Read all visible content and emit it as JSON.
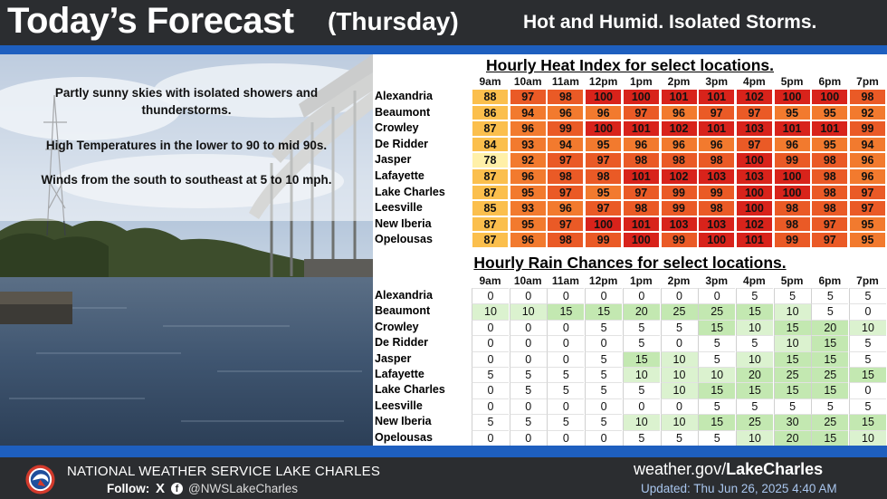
{
  "header": {
    "title": "Today’s Forecast",
    "day": "(Thursday)",
    "headline": "Hot and Humid. Isolated Storms."
  },
  "summary": {
    "line1": "Partly sunny skies with isolated showers and",
    "line2": "thunderstorms.",
    "line3": "High Temperatures in the lower to 90 to mid 90s.",
    "line4": "Winds from the south to southeast at 5 to 10 mph."
  },
  "hours": [
    "9am",
    "10am",
    "11am",
    "12pm",
    "1pm",
    "2pm",
    "3pm",
    "4pm",
    "5pm",
    "6pm",
    "7pm"
  ],
  "heat_index": {
    "title": "Hourly Heat Index for select locations.",
    "rows": [
      {
        "location": "Alexandria",
        "values": [
          88,
          97,
          98,
          100,
          100,
          101,
          101,
          102,
          100,
          100,
          98
        ]
      },
      {
        "location": "Beaumont",
        "values": [
          86,
          94,
          96,
          96,
          97,
          96,
          97,
          97,
          95,
          95,
          92
        ]
      },
      {
        "location": "Crowley",
        "values": [
          87,
          96,
          99,
          100,
          101,
          102,
          101,
          103,
          101,
          101,
          99
        ]
      },
      {
        "location": "De Ridder",
        "values": [
          84,
          93,
          94,
          95,
          96,
          96,
          96,
          97,
          96,
          95,
          94
        ]
      },
      {
        "location": "Jasper",
        "values": [
          78,
          92,
          97,
          97,
          98,
          98,
          98,
          100,
          99,
          98,
          96
        ]
      },
      {
        "location": "Lafayette",
        "values": [
          87,
          96,
          98,
          98,
          101,
          102,
          103,
          103,
          100,
          98,
          96
        ]
      },
      {
        "location": "Lake Charles",
        "values": [
          87,
          95,
          97,
          95,
          97,
          99,
          99,
          100,
          100,
          98,
          97
        ]
      },
      {
        "location": "Leesville",
        "values": [
          85,
          93,
          96,
          97,
          98,
          99,
          98,
          100,
          98,
          98,
          97
        ]
      },
      {
        "location": "New Iberia",
        "values": [
          87,
          95,
          97,
          100,
          101,
          103,
          103,
          102,
          98,
          97,
          95
        ]
      },
      {
        "location": "Opelousas",
        "values": [
          87,
          96,
          98,
          99,
          100,
          99,
          100,
          101,
          99,
          97,
          95
        ]
      }
    ]
  },
  "rain_chances": {
    "title": "Hourly Rain Chances for select locations.",
    "rows": [
      {
        "location": "Alexandria",
        "values": [
          0,
          0,
          0,
          0,
          0,
          0,
          0,
          5,
          5,
          5,
          5
        ]
      },
      {
        "location": "Beaumont",
        "values": [
          10,
          10,
          15,
          15,
          20,
          25,
          25,
          15,
          10,
          5,
          0
        ]
      },
      {
        "location": "Crowley",
        "values": [
          0,
          0,
          0,
          5,
          5,
          5,
          15,
          10,
          15,
          20,
          10
        ]
      },
      {
        "location": "De Ridder",
        "values": [
          0,
          0,
          0,
          0,
          5,
          0,
          5,
          5,
          10,
          15,
          5
        ]
      },
      {
        "location": "Jasper",
        "values": [
          0,
          0,
          0,
          5,
          15,
          10,
          5,
          10,
          15,
          15,
          5
        ]
      },
      {
        "location": "Lafayette",
        "values": [
          5,
          5,
          5,
          5,
          10,
          10,
          10,
          20,
          25,
          25,
          15
        ]
      },
      {
        "location": "Lake Charles",
        "values": [
          0,
          5,
          5,
          5,
          5,
          10,
          15,
          15,
          15,
          15,
          0
        ]
      },
      {
        "location": "Leesville",
        "values": [
          0,
          0,
          0,
          0,
          0,
          0,
          5,
          5,
          5,
          5,
          5
        ]
      },
      {
        "location": "New Iberia",
        "values": [
          5,
          5,
          5,
          5,
          10,
          10,
          15,
          25,
          30,
          25,
          15
        ]
      },
      {
        "location": "Opelousas",
        "values": [
          0,
          0,
          0,
          0,
          5,
          5,
          5,
          10,
          20,
          15,
          10
        ]
      }
    ]
  },
  "colors": {
    "heat_78": "#fff0a8",
    "heat_84_88": "#fbbf4d",
    "heat_92_96": "#f27a2e",
    "heat_97_99": "#ea5a26",
    "heat_100_plus": "#d8231b",
    "rain_low": "#ffffff",
    "rain_mid": "#dbf2cf",
    "rain_high": "#c3e8b1",
    "stripe_blue": "#1e5fbf"
  },
  "footer": {
    "office": "NATIONAL WEATHER SERVICE LAKE CHARLES",
    "follow_label": "Follow:",
    "x_icon": "X",
    "fb_icon": "f",
    "handle": "@NWSLakeCharles",
    "website_prefix": "weather.gov/",
    "website_office": "LakeCharles",
    "updated": "Updated: Thu Jun 26, 2025 4:40 AM"
  },
  "icons": {
    "logo": "nws-logo-icon",
    "x": "x-social-icon",
    "facebook": "facebook-icon"
  }
}
